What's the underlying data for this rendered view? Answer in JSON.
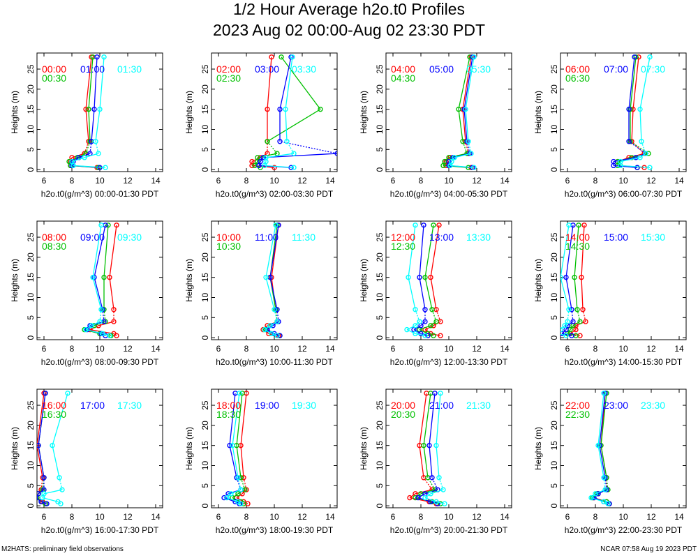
{
  "title": {
    "line1": "1/2 Hour Average h2o.t0 Profiles",
    "line2": "2023 Aug 02 00:00-Aug 02 23:30 PDT"
  },
  "footer": {
    "left": "M2HATS: preliminary field observations",
    "right": "NCAR 07:58 Aug 19 2023 PDT"
  },
  "colors": {
    "c1": "#ff0000",
    "c2": "#00c000",
    "c3": "#0000ff",
    "c4": "#00ffff"
  },
  "chart_data": {
    "type": "line",
    "ylabel": "Heights (m)",
    "xlabel_prefix": "h2o.t0(g/m^3)",
    "x_ticks": [
      "6",
      "8",
      "10",
      "12",
      "14"
    ],
    "y_ticks": [
      "0",
      "5",
      "10",
      "15",
      "20",
      "25"
    ],
    "xlim": [
      5.5,
      14.5
    ],
    "ylim": [
      -0.5,
      29
    ],
    "heights": [
      0.5,
      1,
      2,
      3,
      4,
      7,
      15,
      28
    ],
    "panels": [
      {
        "xlabel": "h2o.t0(g/m^3) 00:00-01:30 PDT",
        "series": [
          {
            "name": "00:00",
            "values": [
              9.8,
              7.9,
              7.9,
              8.0,
              8.9,
              9.2,
              9.0,
              9.4
            ]
          },
          {
            "name": "00:30",
            "values": [
              9.9,
              7.9,
              7.8,
              8.4,
              9.0,
              9.3,
              9.2,
              9.5
            ]
          },
          {
            "name": "01:00",
            "values": [
              10.0,
              8.0,
              8.1,
              8.5,
              9.3,
              9.4,
              9.6,
              9.8
            ]
          },
          {
            "name": "01:30",
            "values": [
              10.4,
              8.1,
              8.0,
              8.9,
              9.9,
              9.7,
              10.0,
              10.3
            ]
          }
        ]
      },
      {
        "xlabel": "h2o.t0(g/m^3) 02:00-03:30 PDT",
        "series": [
          {
            "name": "02:00",
            "values": [
              10.0,
              8.4,
              8.4,
              9.0,
              9.5,
              9.5,
              9.5,
              9.8
            ]
          },
          {
            "name": "02:30",
            "values": [
              9.0,
              8.6,
              8.8,
              8.8,
              10.2,
              9.5,
              13.3,
              10.5
            ]
          },
          {
            "name": "03:00",
            "values": [
              11.2,
              8.9,
              9.0,
              9.2,
              14.5,
              10.4,
              10.4,
              11.2
            ]
          },
          {
            "name": "03:30",
            "values": [
              11.4,
              9.3,
              9.4,
              9.4,
              11.4,
              10.9,
              10.8,
              11.3
            ]
          }
        ]
      },
      {
        "xlabel": "h2o.t0(g/m^3) 04:00-05:30 PDT",
        "series": [
          {
            "name": "04:00",
            "values": [
              11.6,
              9.8,
              9.8,
              10.1,
              11.4,
              11.2,
              11.0,
              11.6
            ]
          },
          {
            "name": "04:30",
            "values": [
              11.4,
              9.6,
              9.7,
              10.0,
              11.3,
              11.0,
              10.7,
              11.5
            ]
          },
          {
            "name": "05:00",
            "values": [
              11.7,
              10.0,
              10.0,
              10.3,
              11.5,
              11.3,
              11.1,
              11.7
            ]
          },
          {
            "name": "05:30",
            "values": [
              11.8,
              10.1,
              10.2,
              10.4,
              11.6,
              11.4,
              11.2,
              11.8
            ]
          }
        ]
      },
      {
        "xlabel": "h2o.t0(g/m^3) 06:00-07:30 PDT",
        "series": [
          {
            "name": "06:00",
            "values": [
              11.5,
              9.8,
              9.6,
              10.4,
              11.5,
              10.6,
              10.7,
              11.1
            ]
          },
          {
            "name": "06:30",
            "values": [
              11.0,
              9.6,
              9.6,
              10.6,
              11.8,
              10.5,
              10.5,
              10.9
            ]
          },
          {
            "name": "07:00",
            "values": [
              11.0,
              9.3,
              9.3,
              10.9,
              11.6,
              10.4,
              10.4,
              10.8
            ]
          },
          {
            "name": "07:30",
            "values": [
              11.9,
              9.8,
              9.8,
              11.2,
              11.6,
              11.3,
              11.2,
              11.9
            ]
          }
        ]
      },
      {
        "xlabel": "h2o.t0(g/m^3) 08:00-09:30 PDT",
        "series": [
          {
            "name": "08:00",
            "values": [
              11.2,
              11.0,
              9.3,
              9.9,
              11.0,
              11.0,
              10.7,
              11.2
            ]
          },
          {
            "name": "08:30",
            "values": [
              10.8,
              10.0,
              8.9,
              9.6,
              10.4,
              10.3,
              10.3,
              10.6
            ]
          },
          {
            "name": "09:00",
            "values": [
              10.4,
              10.1,
              9.1,
              9.3,
              10.3,
              10.2,
              9.6,
              10.4
            ]
          },
          {
            "name": "09:30",
            "values": [
              10.7,
              10.2,
              9.0,
              9.4,
              10.0,
              10.1,
              9.5,
              10.1
            ]
          }
        ]
      },
      {
        "xlabel": "h2o.t0(g/m^3) 10:00-11:30 PDT",
        "series": [
          {
            "name": "10:00",
            "values": [
              10.3,
              9.6,
              9.2,
              9.5,
              10.2,
              10.1,
              9.8,
              10.3
            ]
          },
          {
            "name": "10:30",
            "values": [
              10.4,
              9.8,
              9.4,
              9.7,
              10.2,
              10.1,
              9.7,
              10.2
            ]
          },
          {
            "name": "11:00",
            "values": [
              10.4,
              10.0,
              9.5,
              9.9,
              10.3,
              10.2,
              9.7,
              10.3
            ]
          },
          {
            "name": "11:30",
            "values": [
              10.2,
              9.8,
              9.3,
              9.7,
              10.2,
              10.0,
              9.4,
              10.1
            ]
          }
        ]
      },
      {
        "xlabel": "h2o.t0(g/m^3) 12:00-13:30 PDT",
        "series": [
          {
            "name": "12:00",
            "values": [
              9.4,
              8.7,
              8.3,
              8.9,
              9.4,
              9.1,
              8.7,
              9.3
            ]
          },
          {
            "name": "12:30",
            "values": [
              8.9,
              8.5,
              7.9,
              8.7,
              9.1,
              8.8,
              8.3,
              8.9
            ]
          },
          {
            "name": "13:00",
            "values": [
              8.5,
              8.0,
              7.5,
              8.0,
              8.3,
              8.3,
              7.9,
              8.2
            ]
          },
          {
            "name": "13:30",
            "values": [
              8.3,
              7.6,
              7.0,
              7.6,
              7.9,
              7.6,
              7.1,
              7.6
            ]
          }
        ]
      },
      {
        "xlabel": "h2o.t0(g/m^3) 14:00-15:30 PDT",
        "series": [
          {
            "name": "14:00",
            "values": [
              6.9,
              6.2,
              6.6,
              6.6,
              7.3,
              7.1,
              7.0,
              7.2
            ]
          },
          {
            "name": "14:30",
            "values": [
              6.6,
              6.0,
              6.2,
              6.4,
              6.9,
              6.7,
              6.5,
              6.8
            ]
          },
          {
            "name": "15:00",
            "values": [
              6.3,
              5.6,
              5.9,
              6.0,
              6.4,
              6.3,
              5.9,
              6.4
            ]
          },
          {
            "name": "15:30",
            "values": [
              5.9,
              5.3,
              5.5,
              5.8,
              6.0,
              6.1,
              5.5,
              6.1
            ]
          }
        ]
      },
      {
        "xlabel": "h2o.t0(g/m^3) 16:00-17:30 PDT",
        "series": [
          {
            "name": "16:00",
            "values": [
              6.1,
              5.9,
              5.5,
              5.6,
              5.8,
              5.9,
              5.5,
              6.0
            ]
          },
          {
            "name": "16:30",
            "values": [
              6.1,
              5.8,
              5.5,
              5.6,
              5.9,
              6.0,
              5.6,
              6.1
            ]
          },
          {
            "name": "17:00",
            "values": [
              6.2,
              5.8,
              5.4,
              5.6,
              6.0,
              6.0,
              5.6,
              6.1
            ]
          },
          {
            "name": "17:30",
            "values": [
              7.2,
              7.0,
              5.9,
              6.0,
              7.3,
              7.1,
              6.6,
              7.7
            ]
          }
        ]
      },
      {
        "xlabel": "h2o.t0(g/m^3) 18:00-19:30 PDT",
        "series": [
          {
            "name": "18:00",
            "values": [
              8.1,
              7.8,
              7.3,
              7.7,
              8.0,
              7.8,
              7.6,
              8.0
            ]
          },
          {
            "name": "18:30",
            "values": [
              7.8,
              7.6,
              7.0,
              7.4,
              7.9,
              7.6,
              7.3,
              7.7
            ]
          },
          {
            "name": "19:00",
            "values": [
              7.5,
              7.2,
              6.4,
              6.7,
              7.6,
              7.3,
              6.8,
              7.2
            ]
          },
          {
            "name": "19:30",
            "values": [
              7.6,
              7.4,
              6.6,
              6.9,
              7.6,
              7.4,
              7.0,
              7.5
            ]
          }
        ]
      },
      {
        "xlabel": "h2o.t0(g/m^3) 20:00-21:30 PDT",
        "series": [
          {
            "name": "20:00",
            "values": [
              9.1,
              8.6,
              7.2,
              7.6,
              8.8,
              8.2,
              7.9,
              8.4
            ]
          },
          {
            "name": "20:30",
            "values": [
              9.4,
              8.8,
              7.6,
              8.0,
              9.0,
              8.5,
              8.2,
              8.7
            ]
          },
          {
            "name": "21:00",
            "values": [
              9.2,
              8.7,
              7.8,
              8.3,
              9.2,
              8.8,
              8.6,
              9.0
            ]
          },
          {
            "name": "21:30",
            "values": [
              9.7,
              9.1,
              8.3,
              8.7,
              9.6,
              9.3,
              9.1,
              9.4
            ]
          }
        ]
      },
      {
        "xlabel": "h2o.t0(g/m^3) 22:00-23:30 PDT",
        "series": [
          {
            "name": "22:00",
            "values": [
              9.0,
              8.8,
              7.9,
              8.2,
              8.8,
              8.8,
              8.4,
              8.7
            ]
          },
          {
            "name": "22:30",
            "values": [
              9.0,
              8.8,
              7.8,
              8.1,
              8.9,
              8.8,
              8.4,
              8.8
            ]
          },
          {
            "name": "23:00",
            "values": [
              9.0,
              8.6,
              7.9,
              8.2,
              8.8,
              8.7,
              8.3,
              8.7
            ]
          },
          {
            "name": "23:30",
            "values": [
              8.9,
              8.6,
              7.7,
              8.0,
              8.7,
              8.6,
              8.2,
              8.6
            ]
          }
        ]
      }
    ]
  }
}
